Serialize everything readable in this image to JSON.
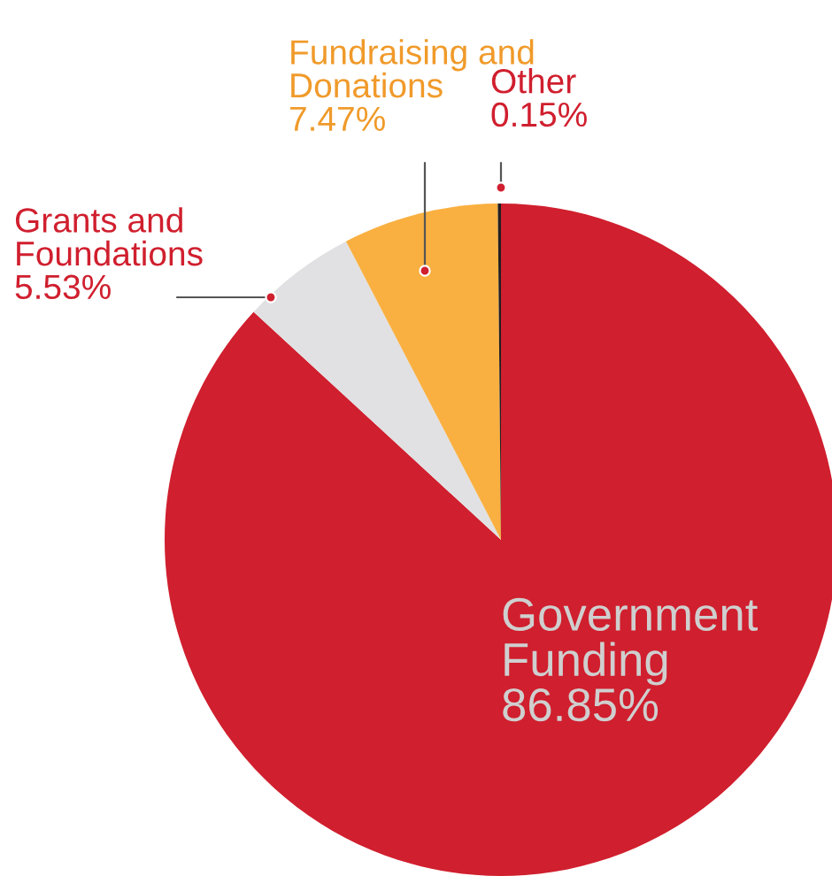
{
  "chart_data": {
    "type": "pie",
    "categories": [
      "Government\nFunding",
      "Grants and\nFoundations",
      "Fundraising and\nDonations",
      "Other"
    ],
    "values": [
      86.85,
      5.53,
      7.47,
      0.15
    ],
    "value_labels": [
      "86.85%",
      "5.53%",
      "7.47%",
      "0.15%"
    ],
    "colors": [
      "#d01f2e",
      "#e1e1e3",
      "#f9b041",
      "#231f20"
    ]
  }
}
